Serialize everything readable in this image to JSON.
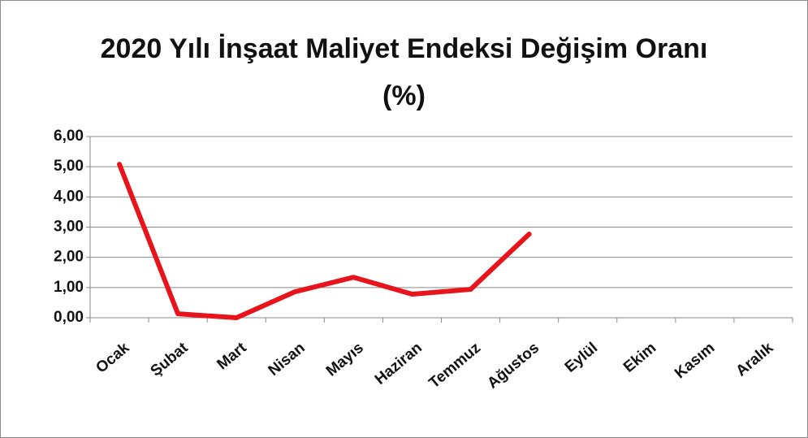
{
  "chart_data": {
    "type": "line",
    "title": "2020 Yılı İnşaat Maliyet Endeksi Değişim Oranı (%)",
    "categories": [
      "Ocak",
      "Şubat",
      "Mart",
      "Nisan",
      "Mayıs",
      "Haziran",
      "Temmuz",
      "Ağustos",
      "Eylül",
      "Ekim",
      "Kasım",
      "Aralık"
    ],
    "series": [
      {
        "name": "2020",
        "color": "#e8141b",
        "values": [
          5.08,
          0.13,
          0,
          0.86,
          1.34,
          0.78,
          0.94,
          2.77,
          null,
          null,
          null,
          null
        ]
      }
    ],
    "ylim": [
      0,
      6
    ],
    "yticks": [
      {
        "value": 0,
        "label": "0,00"
      },
      {
        "value": 1,
        "label": "1,00"
      },
      {
        "value": 2,
        "label": "2,00"
      },
      {
        "value": 3,
        "label": "3,00"
      },
      {
        "value": 4,
        "label": "4,00"
      },
      {
        "value": 5,
        "label": "5,00"
      },
      {
        "value": 6,
        "label": "6,00"
      }
    ],
    "grid": true
  }
}
